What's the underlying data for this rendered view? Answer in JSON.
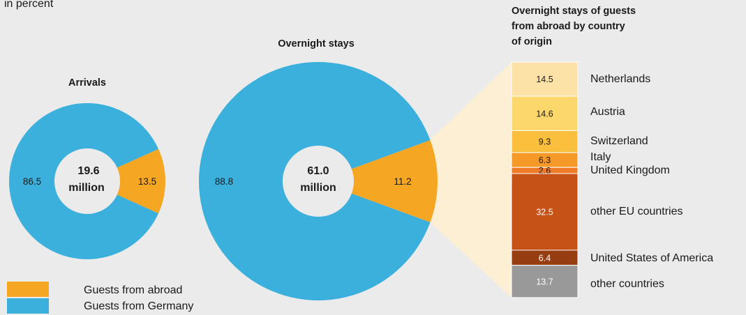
{
  "subtitle": "in percent",
  "colors": {
    "abroad": "#f5a623",
    "germany": "#3bb0dc",
    "hole": "#ebebeb",
    "connector": "#fdefd4"
  },
  "chart_data": [
    {
      "type": "pie",
      "title": "Arrivals",
      "center_line1": "19.6",
      "center_line2": "million",
      "slices": [
        {
          "category": "Guests from Germany",
          "value": 86.5,
          "label": "86.5"
        },
        {
          "category": "Guests from abroad",
          "value": 13.5,
          "label": "13.5"
        }
      ]
    },
    {
      "type": "pie",
      "title": "Overnight stays",
      "center_line1": "61.0",
      "center_line2": "million",
      "slices": [
        {
          "category": "Guests from Germany",
          "value": 88.8,
          "label": "88.8"
        },
        {
          "category": "Guests from abroad",
          "value": 11.2,
          "label": "11.2"
        }
      ]
    },
    {
      "type": "bar",
      "stacked": true,
      "title_lines": [
        "Overnight stays of guests",
        "from abroad by country",
        "of origin"
      ],
      "segments": [
        {
          "country": "Netherlands",
          "value": 14.5,
          "label": "14.5",
          "color": "#fde2a8",
          "text_color": "#1a1a1a"
        },
        {
          "country": "Austria",
          "value": 14.6,
          "label": "14.6",
          "color": "#fcd76c",
          "text_color": "#1a1a1a"
        },
        {
          "country": "Switzerland",
          "value": 9.3,
          "label": "9.3",
          "color": "#fbbf3e",
          "text_color": "#1a1a1a"
        },
        {
          "country": "Italy",
          "value": 6.3,
          "label": "6.3",
          "color": "#f59a28",
          "text_color": "#1a1a1a"
        },
        {
          "country": "United Kingdom",
          "value": 2.6,
          "label": "2.6",
          "color": "#ee7c26",
          "text_color": "#1a1a1a"
        },
        {
          "country": "other EU countries",
          "value": 32.5,
          "label": "32.5",
          "color": "#c75218",
          "text_color": "#ffffff"
        },
        {
          "country": "United States of America",
          "value": 6.4,
          "label": "6.4",
          "color": "#963d12",
          "text_color": "#ffffff"
        },
        {
          "country": "other countries",
          "value": 13.7,
          "label": "13.7",
          "color": "#999999",
          "text_color": "#ffffff"
        }
      ]
    }
  ],
  "legend": [
    {
      "label": "Guests from abroad",
      "color": "#f5a623"
    },
    {
      "label": "Guests from Germany",
      "color": "#3bb0dc"
    }
  ]
}
